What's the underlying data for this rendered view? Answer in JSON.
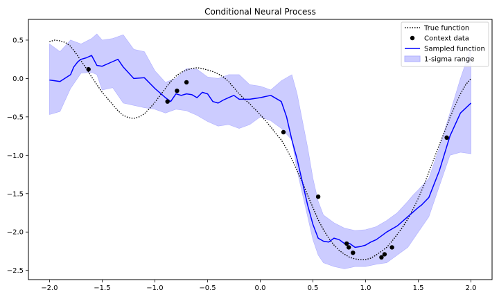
{
  "chart_data": {
    "type": "line",
    "title": "Conditional Neural Process",
    "xlabel": "",
    "ylabel": "",
    "xlim": [
      -2.2,
      2.2
    ],
    "ylim": [
      -2.62,
      0.77
    ],
    "xticks": [
      -2.0,
      -1.5,
      -1.0,
      -0.5,
      0.0,
      0.5,
      1.0,
      1.5,
      2.0
    ],
    "xtick_labels": [
      "−2.0",
      "−1.5",
      "−1.0",
      "−0.5",
      "0.0",
      "0.5",
      "1.0",
      "1.5",
      "2.0"
    ],
    "yticks": [
      0.5,
      0.0,
      -0.5,
      -1.0,
      -1.5,
      -2.0,
      -2.5
    ],
    "ytick_labels": [
      "0.5",
      "0.0",
      "−0.5",
      "−1.0",
      "−1.5",
      "−2.0",
      "−2.5"
    ],
    "grid": false,
    "legend_position": "top-right",
    "colors": {
      "true_function": "#000000",
      "context_data": "#000000",
      "sampled_function": "#0000ff",
      "sigma_band": "#ccccff",
      "sigma_band_edge": "#b0b0ff"
    },
    "legend": [
      {
        "label": "True function",
        "style": "dotted-line"
      },
      {
        "label": "Context data",
        "style": "marker"
      },
      {
        "label": "Sampled function",
        "style": "solid-line"
      },
      {
        "label": "1-sigma range",
        "style": "patch"
      }
    ],
    "series": [
      {
        "name": "True function",
        "x": [
          -2.0,
          -1.95,
          -1.9,
          -1.85,
          -1.8,
          -1.75,
          -1.7,
          -1.65,
          -1.6,
          -1.55,
          -1.5,
          -1.45,
          -1.4,
          -1.35,
          -1.3,
          -1.25,
          -1.2,
          -1.15,
          -1.1,
          -1.05,
          -1.0,
          -0.95,
          -0.9,
          -0.85,
          -0.8,
          -0.75,
          -0.7,
          -0.65,
          -0.6,
          -0.55,
          -0.5,
          -0.45,
          -0.4,
          -0.35,
          -0.3,
          -0.25,
          -0.2,
          -0.15,
          -0.1,
          -0.05,
          0.0,
          0.05,
          0.1,
          0.15,
          0.2,
          0.25,
          0.3,
          0.35,
          0.4,
          0.45,
          0.5,
          0.55,
          0.6,
          0.65,
          0.7,
          0.75,
          0.8,
          0.85,
          0.9,
          0.95,
          1.0,
          1.05,
          1.1,
          1.15,
          1.2,
          1.25,
          1.3,
          1.35,
          1.4,
          1.45,
          1.5,
          1.55,
          1.6,
          1.65,
          1.7,
          1.75,
          1.8,
          1.85,
          1.9,
          1.95,
          2.0
        ],
        "y": [
          0.48,
          0.5,
          0.49,
          0.47,
          0.42,
          0.33,
          0.23,
          0.13,
          0.02,
          -0.08,
          -0.18,
          -0.26,
          -0.34,
          -0.42,
          -0.48,
          -0.51,
          -0.52,
          -0.5,
          -0.46,
          -0.39,
          -0.31,
          -0.22,
          -0.13,
          -0.04,
          0.03,
          0.08,
          0.11,
          0.13,
          0.14,
          0.13,
          0.11,
          0.09,
          0.06,
          0.02,
          -0.04,
          -0.12,
          -0.2,
          -0.27,
          -0.33,
          -0.4,
          -0.47,
          -0.55,
          -0.63,
          -0.72,
          -0.8,
          -0.92,
          -1.05,
          -1.2,
          -1.35,
          -1.52,
          -1.68,
          -1.84,
          -1.97,
          -2.08,
          -2.17,
          -2.24,
          -2.29,
          -2.33,
          -2.35,
          -2.36,
          -2.36,
          -2.34,
          -2.3,
          -2.25,
          -2.2,
          -2.12,
          -2.03,
          -1.94,
          -1.83,
          -1.7,
          -1.56,
          -1.4,
          -1.22,
          -1.04,
          -0.86,
          -0.69,
          -0.51,
          -0.35,
          -0.2,
          -0.08,
          0.0
        ]
      },
      {
        "name": "Sampled function",
        "x": [
          -2.0,
          -1.9,
          -1.8,
          -1.77,
          -1.73,
          -1.7,
          -1.65,
          -1.6,
          -1.55,
          -1.5,
          -1.4,
          -1.35,
          -1.3,
          -1.2,
          -1.1,
          -1.0,
          -0.9,
          -0.85,
          -0.8,
          -0.75,
          -0.7,
          -0.65,
          -0.6,
          -0.55,
          -0.5,
          -0.45,
          -0.4,
          -0.35,
          -0.3,
          -0.25,
          -0.2,
          -0.1,
          0.0,
          0.1,
          0.2,
          0.25,
          0.3,
          0.35,
          0.4,
          0.45,
          0.5,
          0.55,
          0.6,
          0.65,
          0.7,
          0.75,
          0.8,
          0.85,
          0.9,
          0.95,
          1.0,
          1.05,
          1.1,
          1.15,
          1.2,
          1.3,
          1.4,
          1.45,
          1.5,
          1.53,
          1.6,
          1.7,
          1.8,
          1.9,
          2.0
        ],
        "y": [
          -0.02,
          -0.04,
          0.05,
          0.15,
          0.22,
          0.25,
          0.27,
          0.3,
          0.17,
          0.16,
          0.22,
          0.25,
          0.15,
          0.0,
          0.01,
          -0.13,
          -0.25,
          -0.3,
          -0.2,
          -0.22,
          -0.2,
          -0.21,
          -0.25,
          -0.18,
          -0.2,
          -0.3,
          -0.32,
          -0.28,
          -0.25,
          -0.22,
          -0.27,
          -0.27,
          -0.25,
          -0.22,
          -0.3,
          -0.5,
          -0.8,
          -1.05,
          -1.35,
          -1.65,
          -1.9,
          -2.08,
          -2.12,
          -2.13,
          -2.08,
          -2.1,
          -2.15,
          -2.15,
          -2.2,
          -2.19,
          -2.17,
          -2.13,
          -2.1,
          -2.05,
          -2.0,
          -1.92,
          -1.8,
          -1.74,
          -1.68,
          -1.65,
          -1.55,
          -1.2,
          -0.75,
          -0.45,
          -0.32
        ]
      }
    ],
    "sigma_band": {
      "name": "1-sigma range",
      "x": [
        -2.0,
        -1.9,
        -1.8,
        -1.7,
        -1.6,
        -1.55,
        -1.5,
        -1.4,
        -1.3,
        -1.2,
        -1.1,
        -1.0,
        -0.9,
        -0.8,
        -0.7,
        -0.6,
        -0.5,
        -0.4,
        -0.3,
        -0.2,
        -0.1,
        0.0,
        0.1,
        0.2,
        0.3,
        0.35,
        0.4,
        0.45,
        0.5,
        0.55,
        0.6,
        0.7,
        0.8,
        0.9,
        1.0,
        1.1,
        1.2,
        1.3,
        1.4,
        1.45,
        1.5,
        1.6,
        1.7,
        1.8,
        1.9,
        2.0
      ],
      "upper": [
        0.45,
        0.35,
        0.5,
        0.45,
        0.52,
        0.58,
        0.5,
        0.52,
        0.57,
        0.38,
        0.35,
        0.1,
        -0.05,
        0.0,
        0.13,
        0.12,
        0.02,
        0.0,
        0.05,
        0.05,
        -0.08,
        -0.1,
        -0.15,
        -0.03,
        0.05,
        -0.2,
        -0.55,
        -0.9,
        -1.3,
        -1.6,
        -1.78,
        -1.88,
        -1.95,
        -1.98,
        -1.97,
        -1.93,
        -1.85,
        -1.75,
        -1.6,
        -1.52,
        -1.45,
        -1.3,
        -0.9,
        -0.45,
        0.0,
        0.4
      ],
      "lower": [
        -0.47,
        -0.43,
        -0.13,
        0.07,
        0.08,
        0.05,
        -0.15,
        -0.12,
        -0.32,
        -0.35,
        -0.38,
        -0.4,
        -0.45,
        -0.4,
        -0.42,
        -0.48,
        -0.56,
        -0.62,
        -0.6,
        -0.65,
        -0.6,
        -0.5,
        -0.55,
        -0.65,
        -0.8,
        -1.2,
        -1.5,
        -1.8,
        -2.1,
        -2.3,
        -2.4,
        -2.45,
        -2.48,
        -2.45,
        -2.45,
        -2.42,
        -2.4,
        -2.3,
        -2.2,
        -2.1,
        -2.0,
        -1.8,
        -1.4,
        -1.0,
        -0.96,
        -0.98
      ]
    },
    "context_points": {
      "name": "Context data",
      "x": [
        -1.63,
        -0.88,
        -0.79,
        -0.7,
        0.22,
        0.55,
        0.82,
        0.84,
        0.88,
        1.15,
        1.18,
        1.25,
        1.77
      ],
      "y": [
        0.12,
        -0.3,
        -0.16,
        -0.05,
        -0.7,
        -1.54,
        -2.15,
        -2.2,
        -2.27,
        -2.33,
        -2.29,
        -2.2,
        -0.77
      ]
    }
  }
}
